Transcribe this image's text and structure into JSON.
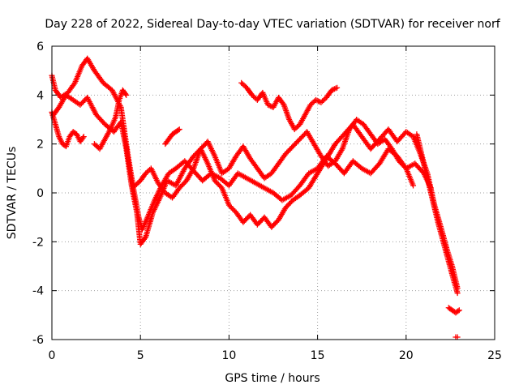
{
  "chart_data": {
    "type": "scatter",
    "title": "Day 228 of 2022, Sidereal Day-to-day VTEC variation (SDTVAR) for receiver norf",
    "xlabel": "GPS time / hours",
    "ylabel": "SDTVAR / TECUs",
    "xlim": [
      0,
      25
    ],
    "ylim": [
      -6,
      6
    ],
    "xticks": [
      0,
      5,
      10,
      15,
      20,
      25
    ],
    "xtick_labels": [
      "0",
      "5",
      "10",
      "15",
      "20",
      "25"
    ],
    "yticks": [
      -6,
      -4,
      -2,
      0,
      2,
      4,
      6
    ],
    "ytick_labels": [
      "-6",
      "-4",
      "-2",
      "0",
      "2",
      "4",
      "6"
    ],
    "grid": true,
    "marker": "+",
    "color": "#ff0000",
    "series": [
      {
        "name": "s1",
        "x": [
          0.0,
          0.2,
          0.5,
          0.9,
          1.3,
          1.7,
          2.0,
          2.4,
          2.9,
          3.4,
          3.9,
          4.3,
          4.6,
          4.9,
          5.1,
          5.4,
          5.8,
          6.2,
          6.6,
          7.0,
          7.5,
          8.0,
          8.5,
          9.0,
          9.5,
          10.0,
          10.5,
          11.0,
          11.5,
          12.0,
          12.5,
          13.0,
          13.5,
          14.0,
          14.5,
          15.0,
          15.5,
          16.0,
          16.5,
          17.0,
          17.5,
          18.0,
          18.5,
          19.0,
          19.5,
          20.0,
          20.5,
          21.0,
          21.4
        ],
        "y": [
          4.8,
          4.2,
          3.9,
          4.1,
          4.5,
          5.2,
          5.5,
          5.0,
          4.5,
          4.2,
          3.5,
          1.5,
          0.2,
          -1.0,
          -1.5,
          -1.0,
          -0.3,
          0.3,
          0.8,
          1.0,
          1.3,
          0.9,
          0.5,
          0.8,
          0.6,
          0.3,
          0.8,
          0.6,
          0.4,
          0.2,
          0.0,
          -0.3,
          -0.1,
          0.3,
          0.8,
          1.0,
          1.5,
          1.2,
          0.8,
          1.3,
          1.0,
          0.8,
          1.2,
          1.8,
          1.5,
          1.0,
          1.2,
          0.8,
          0.2
        ]
      },
      {
        "name": "s2",
        "x": [
          0.1,
          0.4,
          0.8,
          1.2,
          1.6,
          2.0,
          2.5,
          3.0,
          3.5,
          3.9,
          4.2,
          4.5,
          4.8,
          5.0,
          5.3,
          5.7,
          6.1,
          6.5,
          7.0,
          7.5,
          8.0,
          8.4,
          8.8,
          9.2,
          9.6,
          10.0,
          10.4,
          10.8,
          11.2,
          11.6,
          12.0,
          12.4,
          12.8,
          13.2,
          13.6,
          14.0,
          14.5,
          15.0,
          15.5,
          16.0,
          16.5,
          17.0,
          17.5,
          18.0,
          18.5,
          19.0,
          19.5,
          20.0,
          20.4,
          20.8,
          21.2,
          21.6,
          22.0,
          22.3,
          22.6,
          22.9
        ],
        "y": [
          3.2,
          3.5,
          4.0,
          3.8,
          3.6,
          3.9,
          3.2,
          2.8,
          2.5,
          2.9,
          1.8,
          0.3,
          -0.8,
          -2.1,
          -1.8,
          -0.8,
          -0.2,
          0.5,
          0.3,
          1.0,
          1.5,
          1.8,
          1.2,
          0.5,
          0.2,
          -0.5,
          -0.8,
          -1.2,
          -0.9,
          -1.3,
          -1.0,
          -1.4,
          -1.1,
          -0.6,
          -0.3,
          -0.1,
          0.2,
          0.8,
          1.4,
          2.0,
          2.4,
          2.8,
          2.3,
          1.8,
          2.2,
          2.6,
          2.1,
          2.5,
          2.3,
          1.6,
          0.8,
          -0.5,
          -1.5,
          -2.3,
          -3.0,
          -3.9
        ]
      },
      {
        "name": "s3",
        "x": [
          0.0,
          0.2,
          0.4,
          0.6,
          0.8,
          1.0,
          1.2,
          1.4,
          1.6,
          1.8
        ],
        "y": [
          3.3,
          2.8,
          2.3,
          2.0,
          1.9,
          2.3,
          2.5,
          2.4,
          2.1,
          2.3
        ]
      },
      {
        "name": "s4",
        "x": [
          2.4,
          2.7,
          3.0,
          3.3,
          3.6,
          3.8,
          4.0,
          4.2
        ],
        "y": [
          2.0,
          1.8,
          2.2,
          2.6,
          3.1,
          3.8,
          4.2,
          4.0
        ]
      },
      {
        "name": "s5",
        "x": [
          6.4,
          6.6,
          6.8,
          7.0,
          7.2
        ],
        "y": [
          2.0,
          2.2,
          2.4,
          2.5,
          2.6
        ]
      },
      {
        "name": "s6",
        "x": [
          10.7,
          11.0,
          11.3,
          11.6,
          11.9,
          12.2,
          12.5,
          12.8,
          13.1,
          13.4,
          13.7,
          14.0,
          14.3,
          14.6,
          14.9,
          15.2,
          15.5,
          15.8,
          16.1
        ],
        "y": [
          4.5,
          4.3,
          4.0,
          3.8,
          4.1,
          3.6,
          3.5,
          3.9,
          3.6,
          3.0,
          2.6,
          2.8,
          3.2,
          3.6,
          3.8,
          3.7,
          3.9,
          4.2,
          4.3
        ]
      },
      {
        "name": "s7",
        "x": [
          4.7,
          5.0,
          5.3,
          5.6,
          6.0,
          6.4,
          6.8,
          7.2,
          7.6,
          8.0,
          8.4,
          8.8,
          9.2,
          9.6,
          10.0,
          10.4,
          10.8,
          11.2,
          11.6,
          12.0,
          12.4,
          12.8,
          13.2,
          13.6,
          14.0,
          14.4,
          14.8,
          15.2,
          15.6,
          16.0,
          16.4,
          16.8,
          17.2,
          17.6,
          18.0,
          18.4,
          18.8,
          19.2,
          19.6,
          20.0,
          20.4
        ],
        "y": [
          0.3,
          0.5,
          0.8,
          1.0,
          0.4,
          0.0,
          -0.2,
          0.2,
          0.5,
          1.0,
          1.8,
          2.1,
          1.5,
          0.8,
          1.0,
          1.5,
          1.9,
          1.4,
          1.0,
          0.6,
          0.8,
          1.2,
          1.6,
          1.9,
          2.2,
          2.5,
          2.0,
          1.5,
          1.1,
          1.3,
          1.8,
          2.6,
          3.0,
          2.8,
          2.4,
          2.0,
          2.2,
          1.8,
          1.3,
          1.0,
          0.3
        ]
      },
      {
        "name": "s8",
        "x": [
          20.6,
          20.9,
          21.2,
          21.5,
          21.8,
          22.1,
          22.4,
          22.7,
          22.9
        ],
        "y": [
          2.4,
          1.5,
          0.6,
          -0.3,
          -1.2,
          -2.0,
          -2.8,
          -3.6,
          -4.1
        ]
      },
      {
        "name": "s9",
        "x": [
          22.4,
          22.6,
          22.8,
          23.0
        ],
        "y": [
          -4.7,
          -4.8,
          -4.9,
          -4.8
        ]
      },
      {
        "name": "s10",
        "x": [
          22.8,
          22.9
        ],
        "y": [
          -5.9,
          -5.9
        ]
      }
    ]
  }
}
